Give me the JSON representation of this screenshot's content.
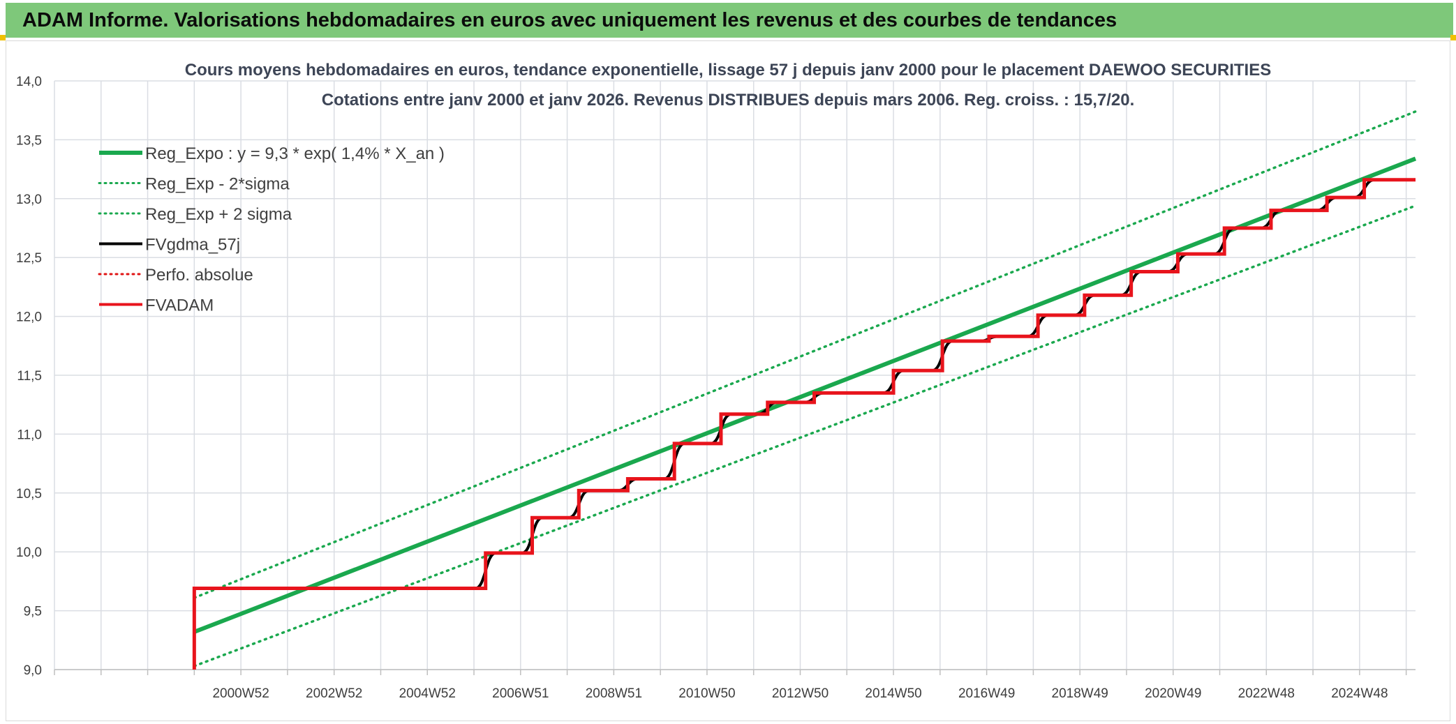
{
  "header": {
    "title": "ADAM Informe. Valorisations hebdomadaires en euros avec uniquement les revenus et des courbes de tendances"
  },
  "chart_data": {
    "type": "line",
    "title_lines": [
      "Cours moyens hebdomadaires en euros, tendance exponentielle, lissage 57 j depuis janv 2000 pour le placement DAEWOO SECURITIES",
      "Cotations entre janv 2000 et janv 2026. Revenus DISTRIBUES depuis mars 2006. Reg. croiss. : 15,7/20."
    ],
    "xlabel": "",
    "ylabel": "",
    "ylim": [
      9.0,
      14.0
    ],
    "yticks": [
      "9,0",
      "9,5",
      "10,0",
      "10,5",
      "11,0",
      "11,5",
      "12,0",
      "12,5",
      "13,0",
      "13,5",
      "14,0"
    ],
    "xlim": [
      1997.0,
      2026.2
    ],
    "xticks": [
      {
        "x": 2001.0,
        "label": "2000W52"
      },
      {
        "x": 2003.0,
        "label": "2002W52"
      },
      {
        "x": 2005.0,
        "label": "2004W52"
      },
      {
        "x": 2007.0,
        "label": "2006W51"
      },
      {
        "x": 2009.0,
        "label": "2008W51"
      },
      {
        "x": 2011.0,
        "label": "2010W50"
      },
      {
        "x": 2013.0,
        "label": "2012W50"
      },
      {
        "x": 2015.0,
        "label": "2014W50"
      },
      {
        "x": 2017.0,
        "label": "2016W49"
      },
      {
        "x": 2019.0,
        "label": "2018W49"
      },
      {
        "x": 2021.0,
        "label": "2020W49"
      },
      {
        "x": 2023.0,
        "label": "2022W48"
      },
      {
        "x": 2025.0,
        "label": "2024W48"
      }
    ],
    "grid": true,
    "legend_position": "top-left",
    "series": [
      {
        "name": "Reg_Expo : y = 9,3 * exp( 1,4% *  X_an )",
        "color": "#1aa84e",
        "style": "solid",
        "width": 6,
        "x": [
          2000.0,
          2026.2
        ],
        "values": [
          9.32,
          13.34
        ]
      },
      {
        "name": "Reg_Exp - 2*sigma",
        "color": "#1aa84e",
        "style": "dotted",
        "width": 3.5,
        "x": [
          2000.0,
          2026.2
        ],
        "values": [
          9.03,
          12.94
        ]
      },
      {
        "name": "Reg_Exp + 2 sigma",
        "color": "#1aa84e",
        "style": "dotted",
        "width": 3.5,
        "x": [
          2000.0,
          2026.2
        ],
        "values": [
          9.61,
          13.74
        ]
      },
      {
        "name": "FVgdma_57j",
        "color": "#000000",
        "style": "smooth",
        "width": 4,
        "start": [
          2000.0,
          9.0
        ],
        "steps": [
          [
            2000.0,
            9.69
          ],
          [
            2006.25,
            9.99
          ],
          [
            2007.25,
            10.29
          ],
          [
            2008.25,
            10.52
          ],
          [
            2009.3,
            10.62
          ],
          [
            2010.3,
            10.92
          ],
          [
            2011.3,
            11.17
          ],
          [
            2012.3,
            11.27
          ],
          [
            2013.3,
            11.35
          ],
          [
            2015.0,
            11.54
          ],
          [
            2016.05,
            11.79
          ],
          [
            2017.05,
            11.83
          ],
          [
            2018.1,
            12.01
          ],
          [
            2019.1,
            12.18
          ],
          [
            2020.1,
            12.38
          ],
          [
            2021.1,
            12.53
          ],
          [
            2022.1,
            12.75
          ],
          [
            2023.1,
            12.9
          ],
          [
            2024.3,
            13.01
          ],
          [
            2025.1,
            13.16
          ]
        ],
        "end_x": 2026.2
      },
      {
        "name": "Perfo. absolue",
        "color": "#e01414",
        "style": "dotted",
        "width": 2.5,
        "hidden_behind": "FVADAM"
      },
      {
        "name": "FVADAM",
        "color": "#e8141c",
        "style": "step",
        "width": 5,
        "start": [
          2000.0,
          9.0
        ],
        "steps": [
          [
            2000.0,
            9.69
          ],
          [
            2006.25,
            9.99
          ],
          [
            2007.25,
            10.29
          ],
          [
            2008.25,
            10.52
          ],
          [
            2009.3,
            10.62
          ],
          [
            2010.3,
            10.92
          ],
          [
            2011.3,
            11.17
          ],
          [
            2012.3,
            11.27
          ],
          [
            2013.3,
            11.35
          ],
          [
            2015.0,
            11.54
          ],
          [
            2016.05,
            11.79
          ],
          [
            2017.05,
            11.83
          ],
          [
            2018.1,
            12.01
          ],
          [
            2019.1,
            12.18
          ],
          [
            2020.1,
            12.38
          ],
          [
            2021.1,
            12.53
          ],
          [
            2022.1,
            12.75
          ],
          [
            2023.1,
            12.9
          ],
          [
            2024.3,
            13.01
          ],
          [
            2025.1,
            13.16
          ]
        ],
        "end_x": 2026.2
      }
    ]
  }
}
